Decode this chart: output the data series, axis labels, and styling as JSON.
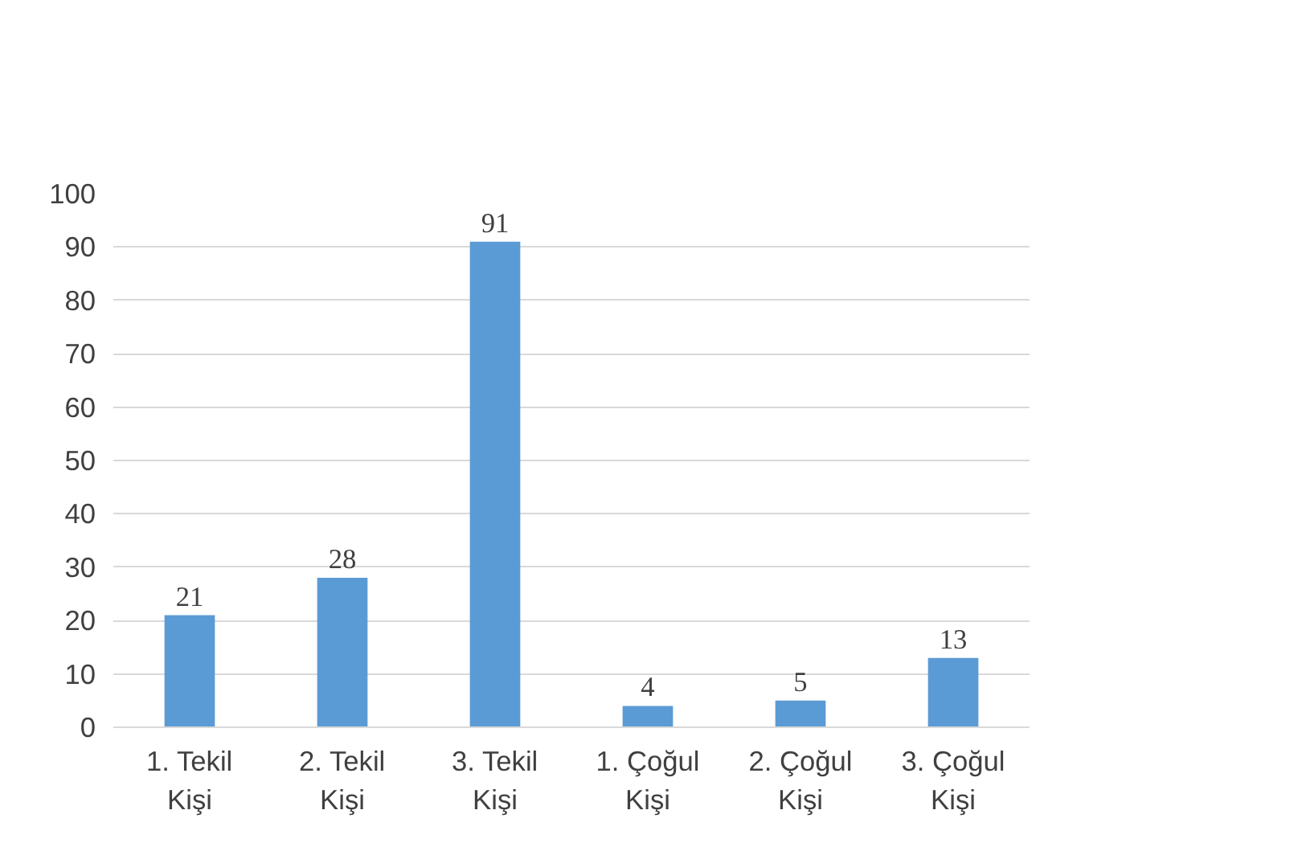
{
  "chart_data": {
    "type": "bar",
    "categories": [
      "1. Tekil\nKişi",
      "2. Tekil\nKişi",
      "3. Tekil\nKişi",
      "1. Çoğul\nKişi",
      "2. Çoğul\nKişi",
      "3. Çoğul\nKişi"
    ],
    "values": [
      21,
      28,
      91,
      4,
      5,
      13
    ],
    "color": "#5b9bd5",
    "ylim": [
      0,
      100
    ],
    "yticks": [
      0,
      10,
      20,
      30,
      40,
      50,
      60,
      70,
      80,
      90,
      100
    ],
    "grid": "y",
    "data_labels": true
  }
}
